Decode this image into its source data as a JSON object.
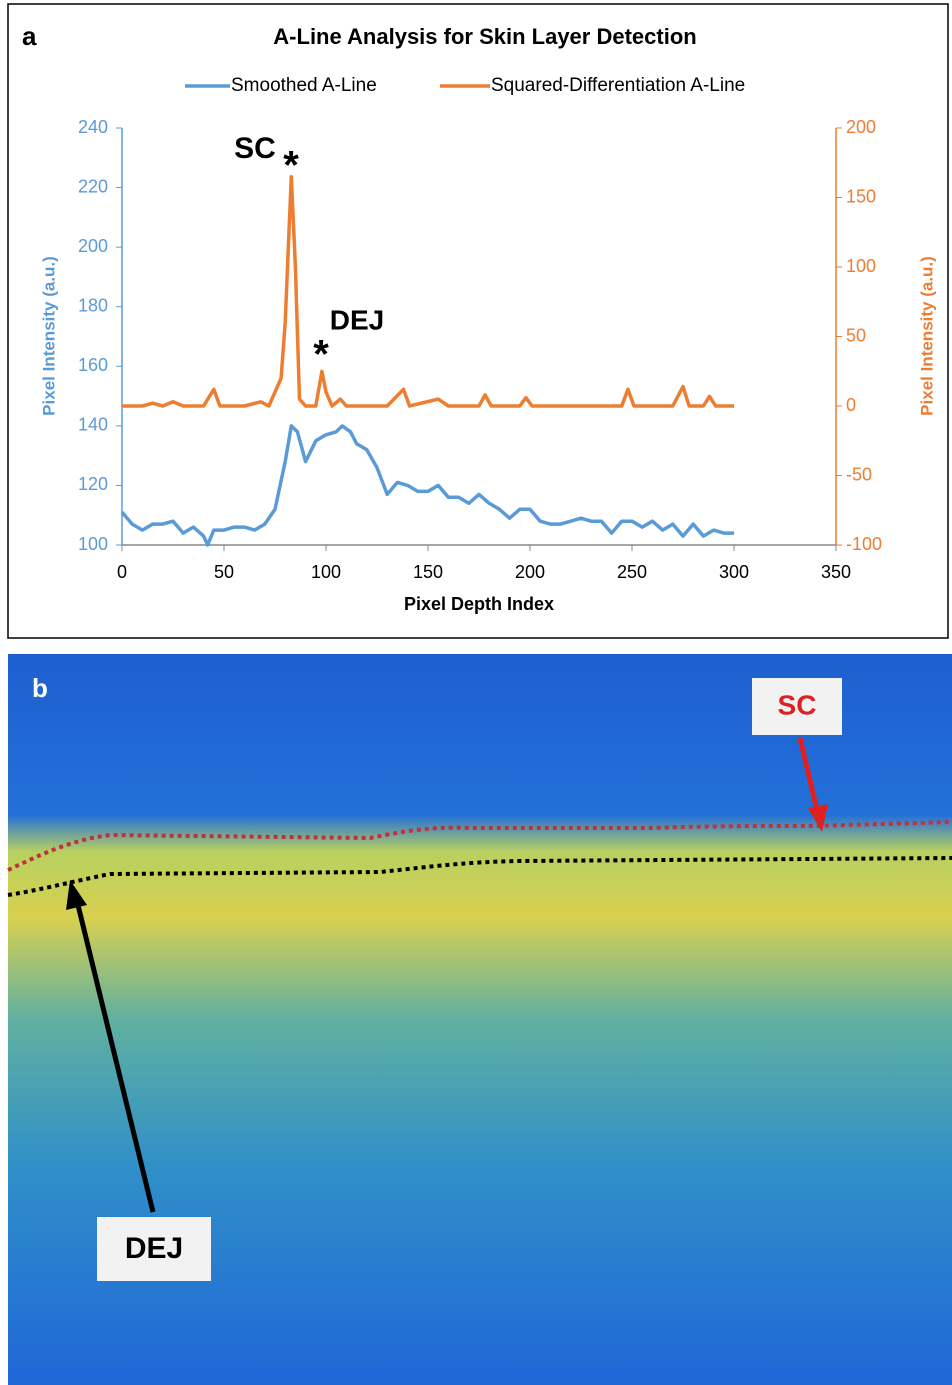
{
  "chart_data": {
    "type": "line",
    "panel_label": "a",
    "title": "A-Line Analysis for Skin Layer Detection",
    "x_label": "Pixel Depth Index",
    "y_label": "Pixel Intensity (a.u.)",
    "y2_label": "Pixel Intensity (a.u.)",
    "xlim": [
      0,
      350
    ],
    "xticks": [
      0,
      50,
      100,
      150,
      200,
      250,
      300,
      350
    ],
    "ylim": [
      100,
      240
    ],
    "yticks": [
      100,
      120,
      140,
      160,
      180,
      200,
      220,
      240
    ],
    "y2lim": [
      -100,
      200
    ],
    "y2ticks": [
      -100,
      -50,
      0,
      50,
      100,
      150,
      200
    ],
    "grid": false,
    "legend": "top",
    "annotations": [
      "SC",
      "*",
      "DEJ",
      "*"
    ],
    "series": [
      {
        "name": "Smoothed A-Line",
        "color": "#5b9bd5",
        "x": [
          0,
          5,
          10,
          15,
          20,
          25,
          30,
          35,
          40,
          42,
          45,
          50,
          55,
          60,
          65,
          70,
          75,
          80,
          83,
          86,
          90,
          95,
          100,
          105,
          108,
          112,
          115,
          120,
          125,
          130,
          135,
          140,
          145,
          150,
          155,
          160,
          165,
          170,
          175,
          180,
          185,
          190,
          195,
          200,
          205,
          210,
          215,
          220,
          225,
          230,
          235,
          240,
          245,
          250,
          255,
          260,
          265,
          270,
          275,
          280,
          285,
          290,
          295,
          300
        ],
        "values": [
          111,
          107,
          105,
          107,
          107,
          108,
          104,
          106,
          103,
          100,
          105,
          105,
          106,
          106,
          105,
          107,
          112,
          128,
          140,
          138,
          128,
          135,
          137,
          138,
          140,
          138,
          134,
          132,
          126,
          117,
          121,
          120,
          118,
          118,
          120,
          116,
          116,
          114,
          117,
          114,
          112,
          109,
          112,
          112,
          108,
          107,
          107,
          108,
          109,
          108,
          108,
          104,
          108,
          108,
          106,
          108,
          105,
          107,
          103,
          107,
          103,
          105,
          104,
          104
        ]
      },
      {
        "name": "Squared-Differentiation A-Line",
        "color": "#ed7d31",
        "axis": "y2",
        "x": [
          0,
          10,
          15,
          20,
          25,
          30,
          40,
          45,
          48,
          60,
          68,
          72,
          78,
          80,
          83,
          85,
          87,
          90,
          95,
          98,
          100,
          103,
          107,
          110,
          130,
          138,
          141,
          155,
          160,
          175,
          178,
          181,
          195,
          198,
          201,
          215,
          245,
          248,
          251,
          270,
          275,
          278,
          285,
          288,
          291,
          300
        ],
        "values": [
          0,
          0,
          2,
          0,
          3,
          0,
          0,
          12,
          0,
          0,
          3,
          0,
          20,
          60,
          165,
          100,
          5,
          0,
          0,
          25,
          10,
          0,
          5,
          0,
          0,
          12,
          0,
          5,
          0,
          0,
          8,
          0,
          0,
          6,
          0,
          0,
          0,
          12,
          0,
          0,
          14,
          0,
          0,
          7,
          0,
          0
        ]
      }
    ]
  },
  "panel_b": {
    "panel_label": "b",
    "annotations": [
      "SC",
      "DEJ"
    ]
  }
}
